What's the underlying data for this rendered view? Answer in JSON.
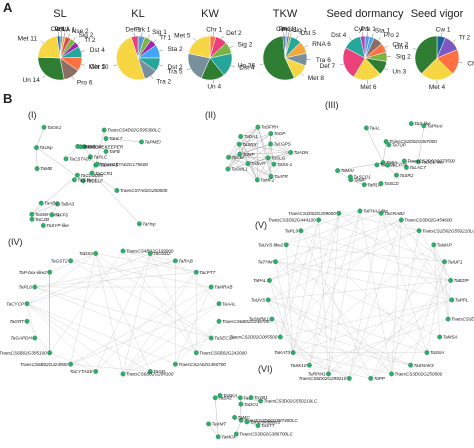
{
  "panel_a_label": "A",
  "panel_b_label": "B",
  "colors": {
    "Cw": "#1f5fa0",
    "Prk": "#5b9bd5",
    "RNA": "#f2a93b",
    "Nse": "#d9534f",
    "Sig": "#7cb342",
    "Tf": "#9c27b0",
    "Dst": "#26a69a",
    "Chr": "#ff7043",
    "Pro": "#8d6e63",
    "Un": "#2e7d32",
    "Met": "#f6d743",
    "Def": "#ec407a",
    "Tra": "#78909c",
    "Sta": "#42a5f5",
    "Cyt": "#ab47bc",
    "Tf2": "#7e57c2"
  },
  "chart_data": [
    {
      "type": "pie",
      "title": "SL",
      "slices": [
        {
          "label": "Prk 1",
          "cat": "Prk",
          "value": 1
        },
        {
          "label": "RNA 1",
          "cat": "RNA",
          "value": 1
        },
        {
          "label": "Nse 2",
          "cat": "Nse",
          "value": 2
        },
        {
          "label": "Sig 2",
          "cat": "Sig",
          "value": 2
        },
        {
          "label": "Tf 2",
          "cat": "Tf",
          "value": 2
        },
        {
          "label": "Dst 4",
          "cat": "Dst",
          "value": 4
        },
        {
          "label": "Chr 5",
          "cat": "Chr",
          "value": 5
        },
        {
          "label": "Pro 6",
          "cat": "Pro",
          "value": 6
        },
        {
          "label": "Un 14",
          "cat": "Un",
          "value": 14
        },
        {
          "label": "Met 11",
          "cat": "Met",
          "value": 11
        },
        {
          "label": "Cw 1",
          "cat": "Cw",
          "value": 1
        }
      ]
    },
    {
      "type": "pie",
      "title": "KL",
      "slices": [
        {
          "label": "Prk 1",
          "cat": "Prk",
          "value": 1
        },
        {
          "label": "Sig 1",
          "cat": "Sig",
          "value": 1
        },
        {
          "label": "Tf 1",
          "cat": "Tf",
          "value": 1
        },
        {
          "label": "Sta 2",
          "cat": "Sta",
          "value": 2
        },
        {
          "label": "Dst 2",
          "cat": "Dst",
          "value": 2
        },
        {
          "label": "Tra 2",
          "cat": "Tra",
          "value": 2
        },
        {
          "label": "Met 10",
          "cat": "Met",
          "value": 10
        },
        {
          "label": "Def 1",
          "cat": "Def",
          "value": 1
        }
      ]
    },
    {
      "type": "pie",
      "title": "KW",
      "slices": [
        {
          "label": "Chr 1",
          "cat": "Chr",
          "value": 1
        },
        {
          "label": "Def 2",
          "cat": "Def",
          "value": 2
        },
        {
          "label": "Sig 2",
          "cat": "Sig",
          "value": 2
        },
        {
          "label": "Dst 4",
          "cat": "Dst",
          "value": 4
        },
        {
          "label": "Un 4",
          "cat": "Un",
          "value": 4
        },
        {
          "label": "Tra 5",
          "cat": "Tra",
          "value": 5
        },
        {
          "label": "Met 5",
          "cat": "Met",
          "value": 5
        }
      ]
    },
    {
      "type": "pie",
      "title": "TKW",
      "slices": [
        {
          "label": "Prk 1",
          "cat": "Prk",
          "value": 1
        },
        {
          "label": "Pro 1",
          "cat": "Pro",
          "value": 1
        },
        {
          "label": "Sig 1",
          "cat": "Sig",
          "value": 1
        },
        {
          "label": "Dst 5",
          "cat": "Dst",
          "value": 5
        },
        {
          "label": "RNA 6",
          "cat": "RNA",
          "value": 6
        },
        {
          "label": "Tra 6",
          "cat": "Tra",
          "value": 6
        },
        {
          "label": "Met 8",
          "cat": "Met",
          "value": 8
        },
        {
          "label": "Un 36",
          "cat": "Un",
          "value": 36
        },
        {
          "label": "Cw 1",
          "cat": "Cw",
          "value": 1
        }
      ]
    },
    {
      "type": "pie",
      "title": "Seed dormancy",
      "slices": [
        {
          "label": "Prk 1",
          "cat": "Prk",
          "value": 1
        },
        {
          "label": "Sta 1",
          "cat": "Sta",
          "value": 1
        },
        {
          "label": "Pro 2",
          "cat": "Pro",
          "value": 2
        },
        {
          "label": "Chr 2",
          "cat": "Chr",
          "value": 2
        },
        {
          "label": "Sig 2",
          "cat": "Sig",
          "value": 2
        },
        {
          "label": "Un 3",
          "cat": "Un",
          "value": 3
        },
        {
          "label": "Met 6",
          "cat": "Met",
          "value": 6
        },
        {
          "label": "Def 7",
          "cat": "Def",
          "value": 7
        },
        {
          "label": "Dst 4",
          "cat": "Dst",
          "value": 4
        },
        {
          "label": "Cyt 1",
          "cat": "Cyt",
          "value": 1
        }
      ]
    },
    {
      "type": "pie",
      "title": "Seed vigor",
      "slices": [
        {
          "label": "Cw 1",
          "cat": "Cw",
          "value": 1
        },
        {
          "label": "Tf 2",
          "cat": "Tf2",
          "value": 2
        },
        {
          "label": "Chr 3",
          "cat": "Chr",
          "value": 3
        },
        {
          "label": "Met 4",
          "cat": "Met",
          "value": 4
        },
        {
          "label": "Un 6",
          "cat": "Un",
          "value": 6
        }
      ]
    }
  ],
  "networks": [
    {
      "title": "(I)",
      "nodes": [
        "TaCSLF",
        "TaUsp",
        "TaCLUD93",
        "TaSWI-like1",
        "TaEXPA5",
        "TaBA3",
        "TraesCS4D02G595300LC",
        "TaBCP",
        "TaHL7",
        "TaCCR1",
        "TaOX1",
        "TaHsp",
        "TaMB",
        "TaPMEI",
        "TaS-like1",
        "TaFB",
        "TaSYP-like",
        "TaNAC",
        "TaPLC",
        "TaABC",
        "TaCSTA03",
        "TaCZB",
        "TaFF6",
        "TaSTOREKEEPER",
        "TraesCS7A02G175600",
        "TraesCS7A02G200000"
      ]
    },
    {
      "title": "(II)",
      "nodes": [
        "TaSLG",
        "TaSS-1",
        "TaATR",
        "TaMF2",
        "TaSVP",
        "TaSML1",
        "TaCtd",
        "TaMP",
        "TaSRX",
        "TaDA1",
        "TaSFRH",
        "TaGP",
        "TaLGPS",
        "TaADN"
      ]
    },
    {
      "title": "(III)",
      "nodes": [
        "TaDCL-like",
        "TaSA",
        "TaAL",
        "TaSR2",
        "TaMAI",
        "TaMP",
        "TaPNAI",
        "TaS-like",
        "TraesCS2D02G373500",
        "TaSCO1",
        "TaRLK",
        "TaMJA",
        "TraesCS2D02G367000",
        "TaLAC7",
        "TaTUP",
        "TaSCD",
        "TaCP70"
      ]
    },
    {
      "title": "(IV)",
      "nodes": [
        "TraesCS4B02G109000",
        "TaGSD2",
        "TaRAB",
        "TaLPT7",
        "TaMRAB",
        "TaAAL",
        "TraesCS6B02G246700",
        "TaSEC1A",
        "TraesCS6B02G242000",
        "TraesCS2A02G450700",
        "TaGD",
        "TraesCS6B02G204100",
        "TaCYTASE",
        "TraesCS6B02G424900",
        "TraesCS6B02G395100",
        "TaGAPDH",
        "TaGRT",
        "TaCYCP",
        "TaPL6",
        "TaP-box-like2",
        "TaGST2",
        "TaDS3"
      ]
    },
    {
      "title": "(V)",
      "nodes": [
        "TaFHA2-like",
        "TaGRAB2",
        "TraesCS3D02G454600",
        "TraesCS2D02G550210LC",
        "TaMAP",
        "TaIUF1",
        "TaBZIP",
        "TaPPL",
        "TraesCS3D02G567600LC",
        "TaMSA",
        "TaSSA",
        "TaSNAK3",
        "TraesCS3D02G250500",
        "TaPP",
        "TraesCS6D02G299210",
        "TaRPM1",
        "TaSK10",
        "TaKAT3",
        "TraesCS2D02G005500",
        "TaSNRK1",
        "TaUVS",
        "TaPAL",
        "TaTHM",
        "TaUVS-like2",
        "TaPL9",
        "TraesCS3D02G444100",
        "TraesCS3D02G299000"
      ]
    },
    {
      "title": "(VI)",
      "nodes": [
        "TaS",
        "TaSA2",
        "TaMOF",
        "TraesCS3D02G587400LC",
        "TaPeroxidase1",
        "TraesCS3D02G386700LC",
        "TaMC",
        "TaSTT",
        "TraesCS3D02G550210LC",
        "TaDO1",
        "TaXMT",
        "TaYB1",
        "TaSKA"
      ]
    }
  ]
}
